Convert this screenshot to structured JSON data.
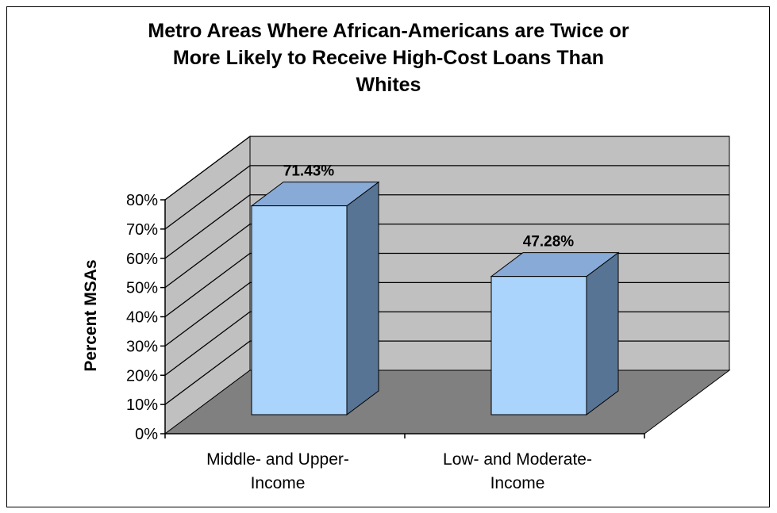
{
  "chart_data": {
    "type": "bar",
    "title_lines": [
      "Metro Areas Where African-Americans are Twice or",
      "More Likely to Receive High-Cost Loans Than",
      "Whites"
    ],
    "xlabel": "",
    "ylabel": "Percent MSAs",
    "categories": [
      [
        "Middle- and Upper-",
        "Income"
      ],
      [
        "Low- and Moderate-",
        "Income"
      ]
    ],
    "values": [
      71.43,
      47.28
    ],
    "data_labels": [
      "71.43%",
      "47.28%"
    ],
    "ylim": [
      0,
      80
    ],
    "yticks": [
      0,
      10,
      20,
      30,
      40,
      50,
      60,
      70,
      80
    ],
    "ytick_labels": [
      "0%",
      "10%",
      "20%",
      "30%",
      "40%",
      "50%",
      "60%",
      "70%",
      "80%"
    ],
    "grid": true,
    "legend": "none",
    "colors": {
      "bar_front": "#aad4fb",
      "bar_top": "#88aad6",
      "bar_side": "#587494",
      "back_wall": "#c0c0c0",
      "side_wall": "#c0c0c0",
      "floor": "#808080",
      "gridline": "#000000"
    }
  }
}
